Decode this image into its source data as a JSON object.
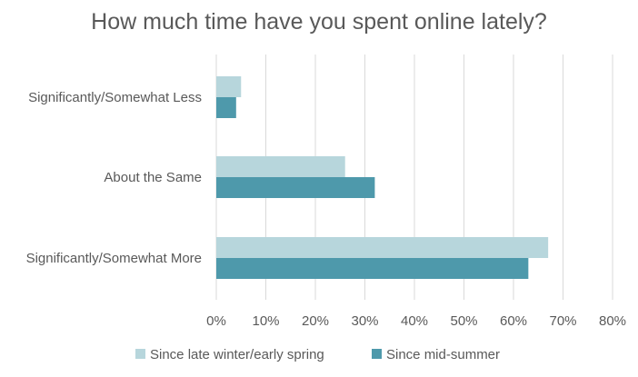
{
  "chart_data": {
    "type": "bar",
    "orientation": "horizontal",
    "title": "How much time have you spent online lately?",
    "categories": [
      "Significantly/Somewhat Less",
      "About the Same",
      "Significantly/Somewhat More"
    ],
    "series": [
      {
        "name": "Since late winter/early spring",
        "color": "#b7d6dc",
        "values": [
          5,
          26,
          67
        ]
      },
      {
        "name": "Since mid-summer",
        "color": "#4e99ab",
        "values": [
          4,
          32,
          63
        ]
      }
    ],
    "xlim": [
      0,
      80
    ],
    "xticks": [
      0,
      10,
      20,
      30,
      40,
      50,
      60,
      70,
      80
    ],
    "tick_labels": [
      "0%",
      "10%",
      "20%",
      "30%",
      "40%",
      "50%",
      "60%",
      "70%",
      "80%"
    ],
    "grid": true,
    "legend_position": "bottom"
  }
}
